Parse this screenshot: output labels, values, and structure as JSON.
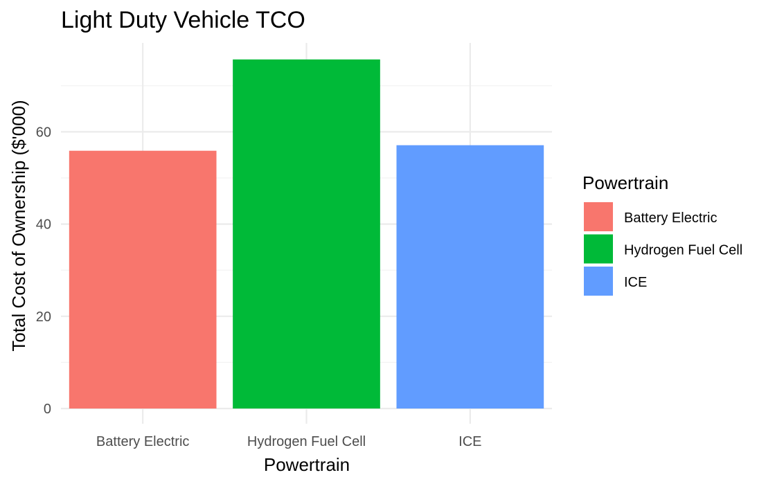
{
  "chart_data": {
    "type": "bar",
    "title": "Light Duty Vehicle TCO",
    "xlabel": "Powertrain",
    "ylabel": "Total Cost of Ownership ($'000)",
    "categories": [
      "Battery Electric",
      "Hydrogen Fuel Cell",
      "ICE"
    ],
    "values": [
      55.9,
      75.7,
      57.1
    ],
    "colors": [
      "#F8766D",
      "#00BA38",
      "#619CFF"
    ],
    "ylim": [
      0,
      79
    ],
    "yticks": [
      0,
      20,
      40,
      60
    ],
    "grid": true,
    "legend": {
      "title": "Powertrain",
      "position": "right",
      "entries": [
        "Battery Electric",
        "Hydrogen Fuel Cell",
        "ICE"
      ]
    }
  }
}
